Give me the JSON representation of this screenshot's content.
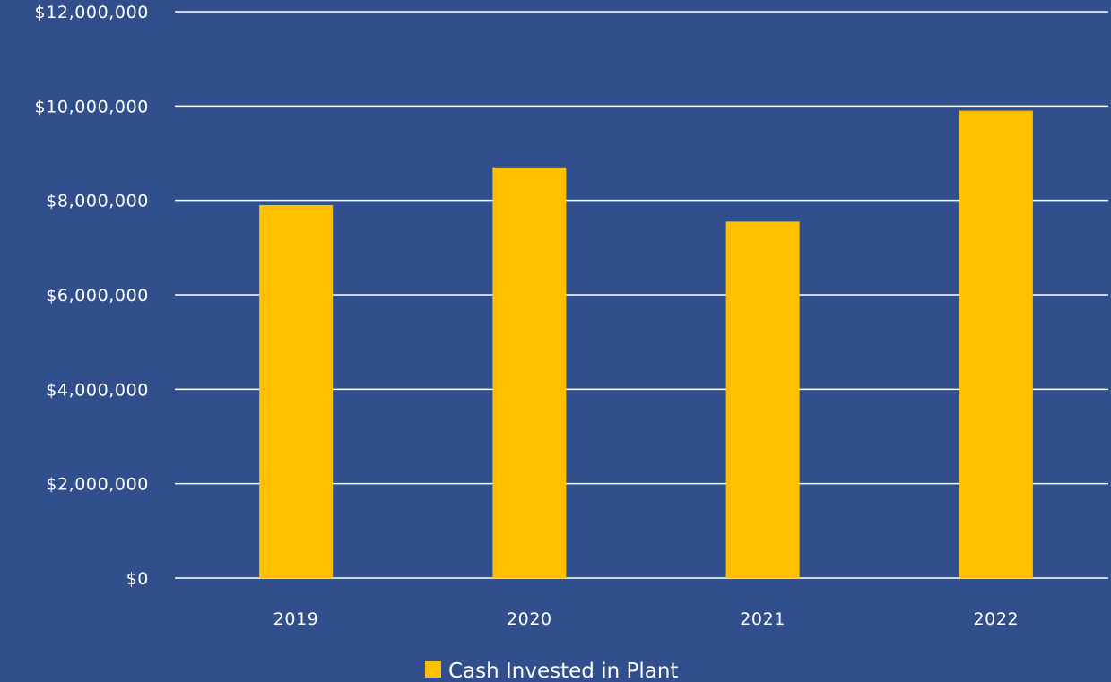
{
  "colors": {
    "background": "#314f8c",
    "bar": "#ffc000",
    "gridline": "#ffffff",
    "text": "#ffffff"
  },
  "chart_data": {
    "type": "bar",
    "title": "",
    "xlabel": "",
    "ylabel": "",
    "categories": [
      "2019",
      "2020",
      "2021",
      "2022"
    ],
    "series": [
      {
        "name": "Cash Invested in Plant",
        "values": [
          7900000,
          8700000,
          7550000,
          9900000
        ]
      }
    ],
    "ylim": [
      0,
      12000000
    ],
    "y_ticks": [
      0,
      2000000,
      4000000,
      6000000,
      8000000,
      10000000,
      12000000
    ],
    "y_tick_labels": [
      "$0",
      "$2,000,000",
      "$4,000,000",
      "$6,000,000",
      "$8,000,000",
      "$10,000,000",
      "$12,000,000"
    ],
    "grid": true,
    "legend_position": "bottom-center"
  }
}
